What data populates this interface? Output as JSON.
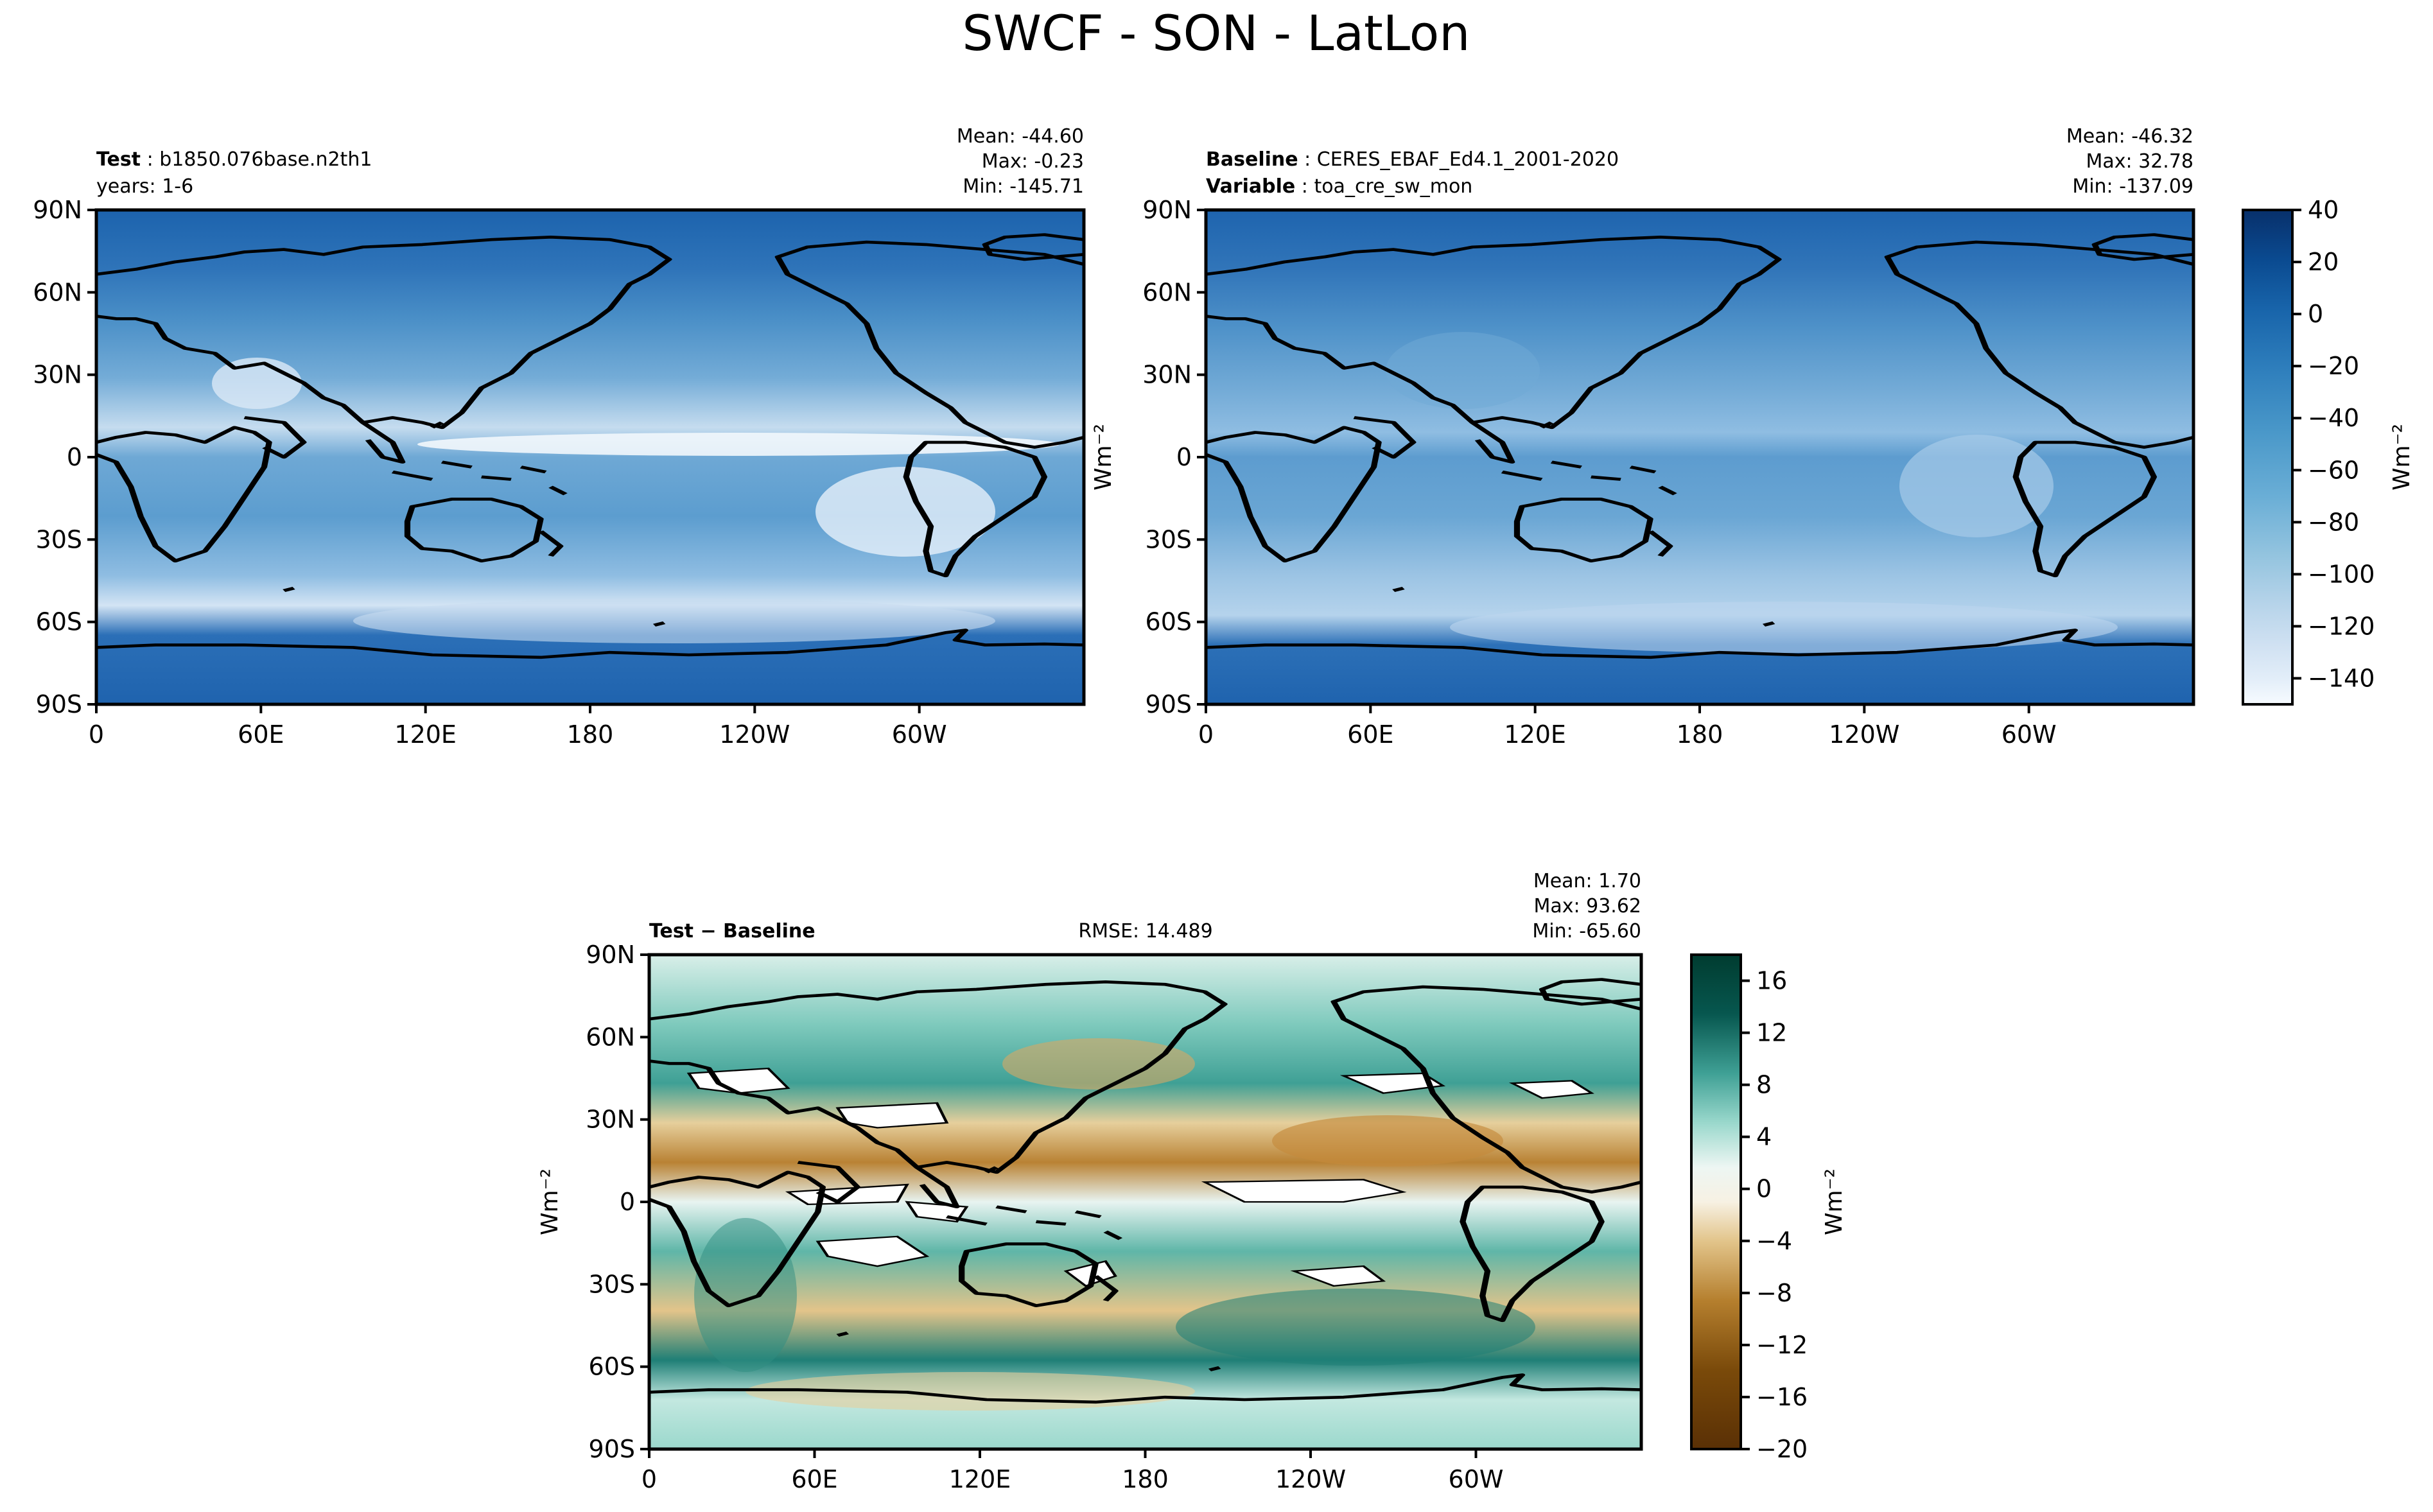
{
  "figure": {
    "title": "SWCF - SON - LatLon"
  },
  "panels": [
    {
      "id": "test",
      "header_left_line1_bold": "Test",
      "header_left_line1_rest": "b1850.076base.n2th1",
      "header_left_line2_bold": "",
      "header_left_line2_rest": "years: 1-6",
      "stats": [
        "Mean: -44.60",
        "Max: -0.23",
        "Min: -145.71"
      ],
      "center_text": "",
      "ylabel": "Wm⁻²"
    },
    {
      "id": "baseline",
      "header_left_line1_bold": "Baseline",
      "header_left_line1_rest": "CERES_EBAF_Ed4.1_2001-2020",
      "header_left_line2_bold": "Variable",
      "header_left_line2_rest": "toa_cre_sw_mon",
      "stats": [
        "Mean: -46.32",
        "Max: 32.78",
        "Min: -137.09"
      ],
      "center_text": "",
      "ylabel": ""
    },
    {
      "id": "diff",
      "header_left_line1_bold": "Test − Baseline",
      "header_left_line1_rest": "",
      "header_left_line2_bold": "",
      "header_left_line2_rest": "",
      "stats": [
        "Mean:  1.70",
        "Max: 93.62",
        "Min: -65.60"
      ],
      "center_text": "RMSE: 14.489",
      "ylabel": "Wm⁻²"
    }
  ],
  "axes": {
    "lat_ticks": [
      "90N",
      "60N",
      "30N",
      "0",
      "30S",
      "60S",
      "90S"
    ],
    "lon_ticks": [
      "0",
      "60E",
      "120E",
      "180",
      "120W",
      "60W"
    ]
  },
  "colorbars": [
    {
      "id": "main",
      "label": "Wm⁻²",
      "tick_labels": [
        "40",
        "20",
        "0",
        "−20",
        "−40",
        "−60",
        "−80",
        "−100",
        "−120",
        "−140"
      ],
      "colors": [
        "#f7fbff",
        "#e3eef9",
        "#d0e1f2",
        "#b7d4ea",
        "#94c4df",
        "#6aaed6",
        "#4a98c9",
        "#2e7ebc",
        "#1864aa",
        "#0a4a90",
        "#08306b"
      ]
    },
    {
      "id": "diff",
      "label": "Wm⁻²",
      "tick_labels": [
        "16",
        "12",
        "8",
        "4",
        "0",
        "−4",
        "−8",
        "−12",
        "−16",
        "−20"
      ],
      "colors": [
        "#5a3005",
        "#7a4a0a",
        "#9a6216",
        "#b57f2e",
        "#cfa058",
        "#e2c48a",
        "#f1e2bd",
        "#f7f1e3",
        "#edf6f3",
        "#c3e8e0",
        "#9ad8cc",
        "#6cc0b2",
        "#3fa095",
        "#1f7f76",
        "#07574f",
        "#003c30"
      ]
    }
  ]
}
